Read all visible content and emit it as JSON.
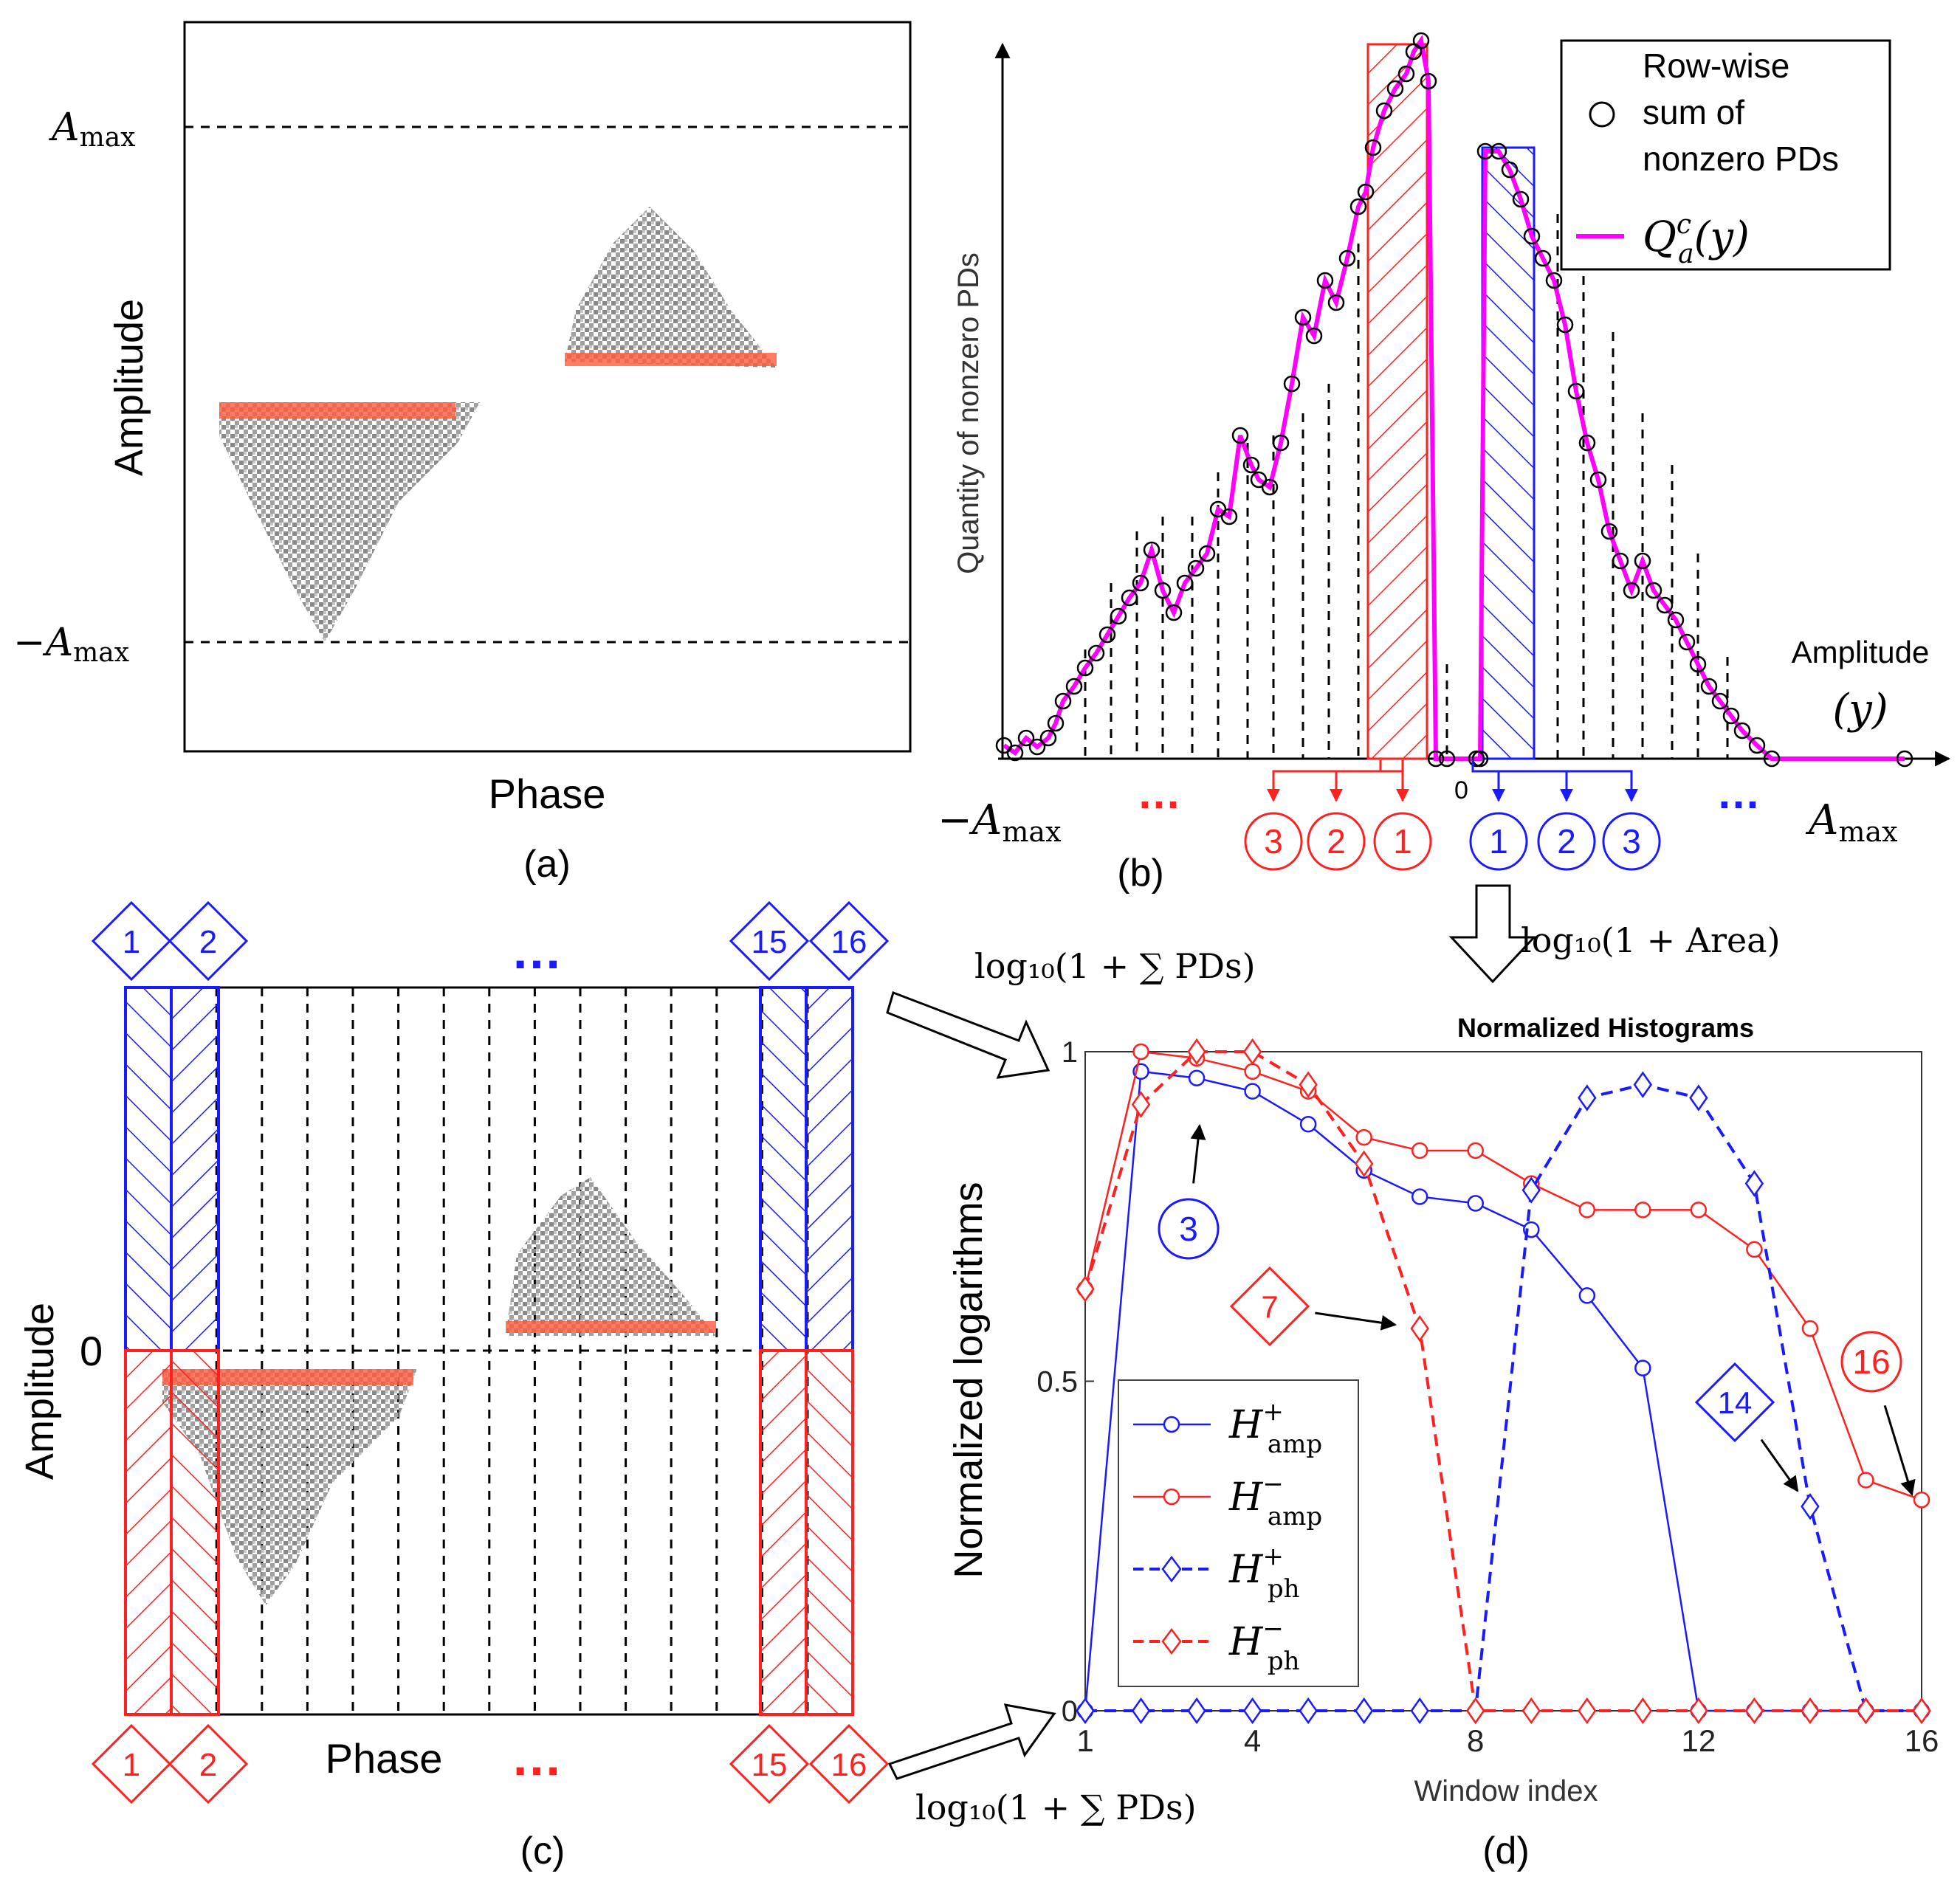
{
  "panel_a": {
    "caption": "(a)",
    "ylabel": "Amplitude",
    "xlabel": "Phase",
    "amax_label": "A",
    "amax_sub": "max",
    "neg_amax_label": "−A",
    "neg_amax_sub": "max"
  },
  "panel_b": {
    "caption": "(b)",
    "ylabel": "Quantity of nonzero PDs",
    "xlabel_line1": "Amplitude",
    "xlabel_line2": "(y)",
    "zero_label": "0",
    "neg_amax_label": "−A",
    "amax_label": "A",
    "max_sub": "max",
    "ellipsis": "…",
    "legend": {
      "circle_line1": "Row-wise",
      "circle_line2": "sum of",
      "circle_line3": "nonzero PDs",
      "line_label": "Q",
      "line_sup": "c",
      "line_sub": "a",
      "line_arg": "(y)"
    },
    "neg_windows": [
      "3",
      "2",
      "1"
    ],
    "pos_windows": [
      "1",
      "2",
      "3"
    ]
  },
  "panel_c": {
    "caption": "(c)",
    "ylabel": "Amplitude",
    "xlabel": "Phase",
    "zero_label": "0",
    "top_windows": [
      "1",
      "2",
      "15",
      "16"
    ],
    "bottom_windows": [
      "1",
      "2",
      "15",
      "16"
    ],
    "ellipsis": "…"
  },
  "arrows": {
    "upper_formula": "log₁₀(1 + ∑ PDs)",
    "lower_formula": "log₁₀(1 + ∑ PDs)",
    "area_formula": "log₁₀(1 + Area)"
  },
  "chart_data": {
    "type": "line",
    "title": "Normalized Histograms",
    "caption": "(d)",
    "xlabel": "Window index",
    "ylabel": "Normalized logarithms",
    "xlim": [
      1,
      16
    ],
    "ylim": [
      0,
      1
    ],
    "xticks": [
      "1",
      "4",
      "8",
      "12",
      "16"
    ],
    "yticks": [
      "0",
      "0.5",
      "1"
    ],
    "x": [
      1,
      2,
      3,
      4,
      5,
      6,
      7,
      8,
      9,
      10,
      11,
      12,
      13,
      14,
      15,
      16
    ],
    "series": [
      {
        "name": "H+amp",
        "base": "H",
        "sup": "+",
        "sub": "amp",
        "color": "#1a1aff",
        "dashed": false,
        "marker": "circle",
        "values": [
          0,
          0.97,
          0.96,
          0.94,
          0.89,
          0.82,
          0.78,
          0.77,
          0.73,
          0.63,
          0.52,
          0,
          0,
          0,
          0,
          0
        ]
      },
      {
        "name": "H-amp",
        "base": "H",
        "sup": "−",
        "sub": "amp",
        "color": "#ff2020",
        "dashed": false,
        "marker": "circle",
        "values": [
          0.64,
          1.0,
          0.99,
          0.97,
          0.94,
          0.87,
          0.85,
          0.85,
          0.8,
          0.76,
          0.76,
          0.76,
          0.7,
          0.58,
          0.35,
          0.32
        ]
      },
      {
        "name": "H+ph",
        "base": "H",
        "sup": "+",
        "sub": "ph",
        "color": "#1a1aff",
        "dashed": true,
        "marker": "diamond",
        "values": [
          0,
          0,
          0,
          0,
          0,
          0,
          0,
          0,
          0.79,
          0.93,
          0.95,
          0.93,
          0.8,
          0.31,
          0,
          0
        ]
      },
      {
        "name": "H-ph",
        "base": "H",
        "sup": "−",
        "sub": "ph",
        "color": "#ff2020",
        "dashed": true,
        "marker": "diamond",
        "values": [
          0.64,
          0.92,
          1.0,
          1.0,
          0.95,
          0.83,
          0.58,
          0,
          0,
          0,
          0,
          0,
          0,
          0,
          0,
          0
        ]
      }
    ],
    "annotations": [
      {
        "text": "3",
        "shape": "circle",
        "color": "#1a1aff",
        "target_x": 3,
        "target_y": 0.96
      },
      {
        "text": "7",
        "shape": "diamond",
        "color": "#ff2020",
        "target_x": 7,
        "target_y": 0.58
      },
      {
        "text": "14",
        "shape": "diamond",
        "color": "#1a1aff",
        "target_x": 14,
        "target_y": 0.31
      },
      {
        "text": "16",
        "shape": "circle",
        "color": "#ff2020",
        "target_x": 16,
        "target_y": 0.32
      }
    ]
  }
}
